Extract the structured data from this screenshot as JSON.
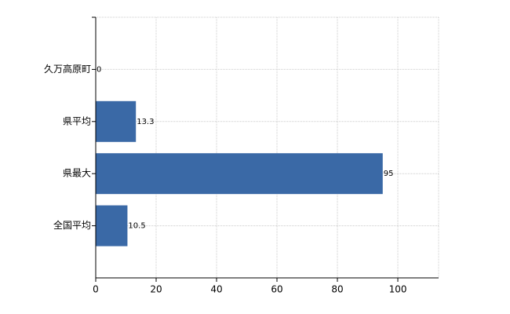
{
  "chart_data": {
    "type": "bar",
    "orientation": "horizontal",
    "categories": [
      "久万高原町",
      "県平均",
      "県最大",
      "全国平均"
    ],
    "values": [
      0,
      13.3,
      95,
      10.5
    ],
    "color": "#3a69a6",
    "xlim": [
      0,
      113.5
    ],
    "xticks": [
      0,
      20,
      40,
      60,
      80,
      100
    ],
    "grid": true
  }
}
